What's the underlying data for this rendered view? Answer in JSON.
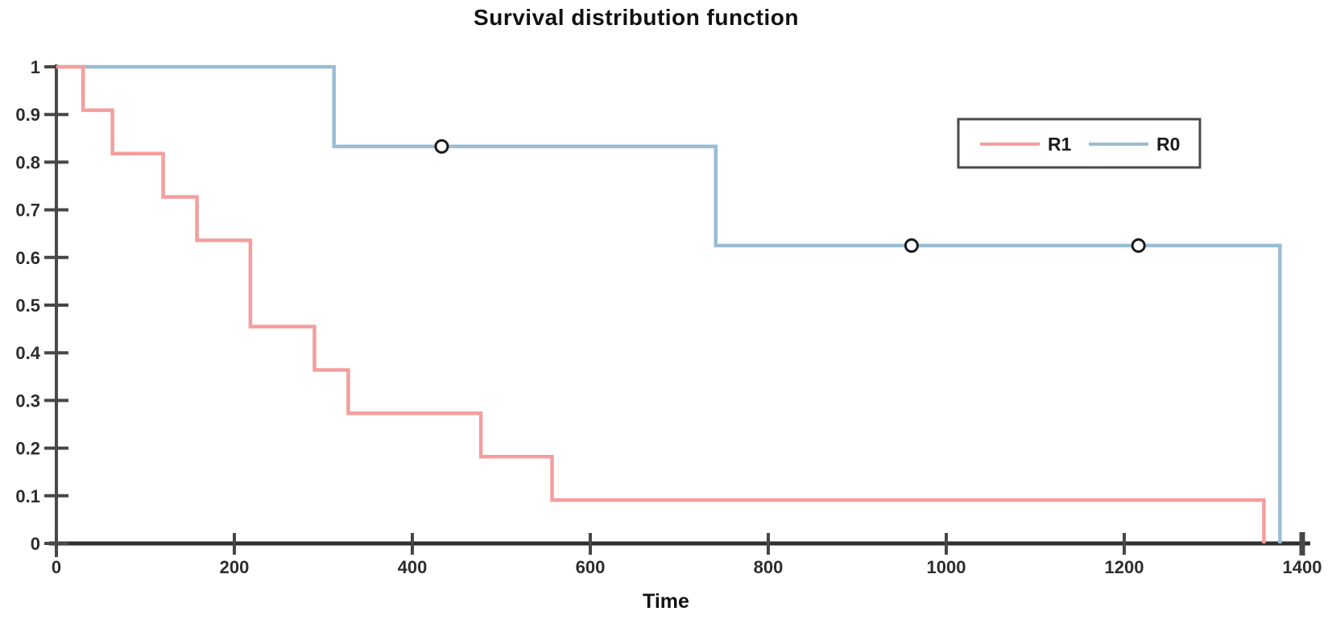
{
  "page": {
    "background": "#ffffff"
  },
  "chart_data": {
    "type": "line",
    "subtype": "kaplan-meier-step-survival",
    "title": "Survival distribution function",
    "xlabel": "Time",
    "ylabel": "",
    "xlim": [
      0,
      1400
    ],
    "ylim": [
      0,
      1
    ],
    "x_ticks": [
      0,
      200,
      400,
      600,
      800,
      1000,
      1200,
      1400
    ],
    "x_tick_labels": [
      "0",
      "200",
      "400",
      "600",
      "800",
      "1000",
      "1200",
      "1400"
    ],
    "y_ticks": [
      0,
      0.1,
      0.2,
      0.3,
      0.4,
      0.5,
      0.6,
      0.7,
      0.8,
      0.9,
      1
    ],
    "y_tick_labels": [
      "0",
      "0.1",
      "0.2",
      "0.3",
      "0.4",
      "0.5",
      "0.6",
      "0.7",
      "0.8",
      "0.9",
      "1"
    ],
    "grid": false,
    "axis_color": "#2f2f2f",
    "tick_color": "#474747",
    "text_color": "#2d2d2d",
    "censor_marker": {
      "shape": "circle",
      "fill": "#ffffff",
      "stroke": "#1a1a1a"
    },
    "legend": {
      "position": "top-right",
      "border_color": "#4a4a4a",
      "entries": [
        "R1",
        "R0"
      ]
    },
    "series": [
      {
        "name": "R1",
        "color": "#f49e9e",
        "start": [
          0,
          1
        ],
        "steps": [
          [
            30,
            0.909
          ],
          [
            63,
            0.818
          ],
          [
            120,
            0.727
          ],
          [
            158,
            0.636
          ],
          [
            218,
            0.455
          ],
          [
            290,
            0.364
          ],
          [
            328,
            0.273
          ],
          [
            477,
            0.182
          ],
          [
            557,
            0.091
          ],
          [
            1357,
            0
          ]
        ],
        "censor_marks": []
      },
      {
        "name": "R0",
        "color": "#9abdd3",
        "start": [
          0,
          1
        ],
        "steps": [
          [
            312,
            0.833
          ],
          [
            741,
            0.625
          ],
          [
            1375,
            0
          ]
        ],
        "censor_marks": [
          [
            433,
            0.833
          ],
          [
            961,
            0.625
          ],
          [
            1216,
            0.625
          ]
        ]
      }
    ]
  }
}
